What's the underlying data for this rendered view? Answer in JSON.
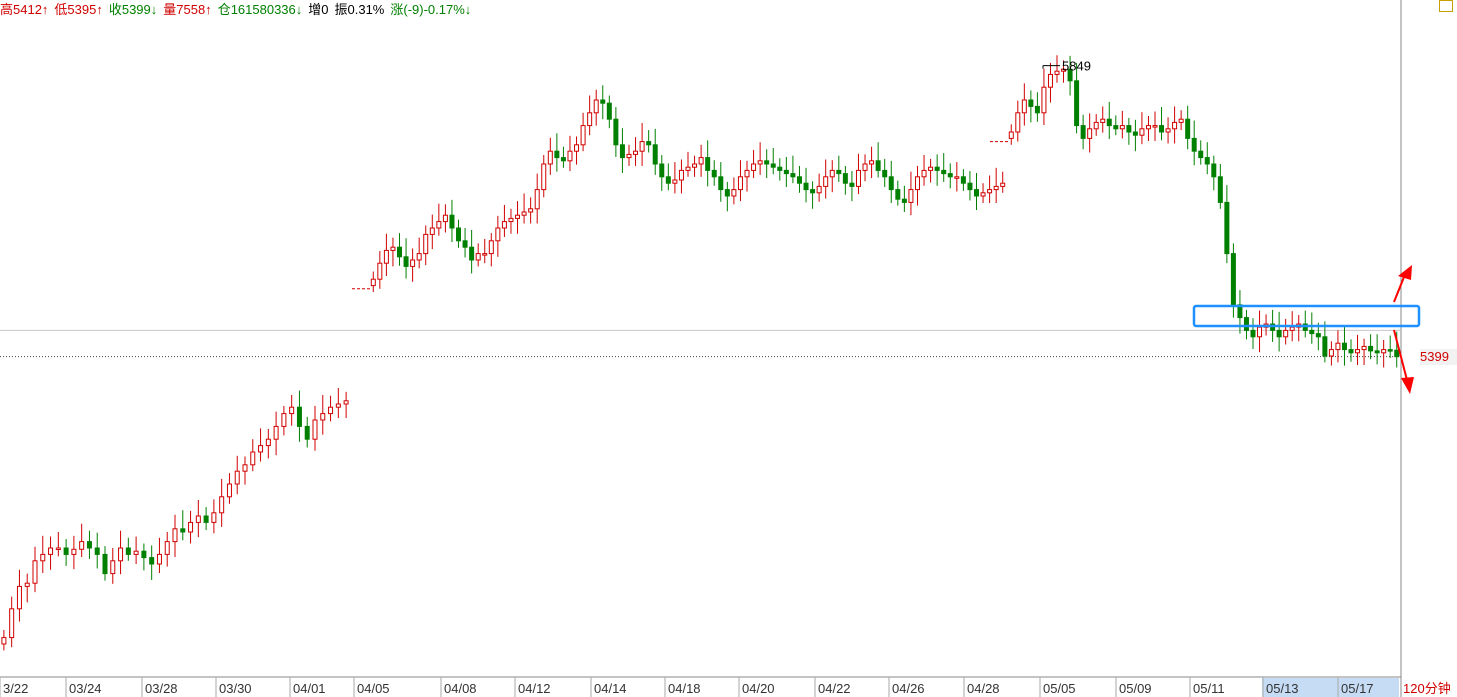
{
  "info_bar": {
    "high": "高5412↑",
    "low": "低5395↑",
    "close": "收5399↓",
    "volume": "量7558↑",
    "open_interest": "仓161580336↓",
    "increase": "增0",
    "amplitude": "振0.31%",
    "change": "涨(-9)-0.17%↓"
  },
  "period_label": "120分钟",
  "price_tag": "5399",
  "peak_label": "5849",
  "colors": {
    "up": "#d00000",
    "down": "#008000",
    "highlight": "#1e90ff",
    "arrow": "#ff0000",
    "selection": "#c6dcf5"
  },
  "chart_data": {
    "type": "candlestick",
    "title": "",
    "x_labels": [
      "3/22",
      "03/24",
      "03/28",
      "03/30",
      "04/01",
      "04/05",
      "04/08",
      "04/12",
      "04/14",
      "04/18",
      "04/20",
      "04/22",
      "04/26",
      "04/28",
      "05/05",
      "05/09",
      "05/11",
      "05/13",
      "05/17"
    ],
    "selected_x_labels": [
      "05/13",
      "05/17"
    ],
    "last_close": 5399,
    "period_high": 5849,
    "reference_level": 5440,
    "y_range": [
      4900,
      5900
    ],
    "candle_segments": [
      [
        4960,
        5005,
        5040,
        5045,
        5080,
        5090,
        5100,
        5100,
        5090,
        5098,
        5110,
        5100,
        5090,
        5060,
        5080,
        5100,
        5090,
        5095,
        5085,
        5075,
        5090,
        5110,
        5130,
        5125,
        5140,
        5150,
        5140,
        5155,
        5180,
        5200,
        5220,
        5230,
        5250,
        5260,
        5270,
        5290,
        5310,
        5320,
        5290,
        5270,
        5300,
        5310,
        5320,
        5325,
        5330
      ],
      [
        5520,
        5545,
        5565,
        5570,
        5555,
        5540,
        5550,
        5560,
        5590,
        5600,
        5610,
        5620,
        5600,
        5580,
        5570,
        5550,
        5560,
        5560,
        5580,
        5600,
        5610,
        5615,
        5620,
        5625,
        5630,
        5660,
        5700,
        5720,
        5710,
        5705,
        5720,
        5730,
        5760,
        5780,
        5800,
        5795,
        5770,
        5730,
        5710,
        5715,
        5720,
        5735,
        5730,
        5700,
        5680,
        5670,
        5675,
        5690,
        5695,
        5700,
        5710,
        5690,
        5680,
        5660,
        5650,
        5660,
        5680,
        5690,
        5700,
        5705,
        5700,
        5695,
        5690,
        5685,
        5680,
        5670,
        5660,
        5655,
        5665,
        5680,
        5690,
        5685,
        5670,
        5665,
        5690,
        5700,
        5705,
        5690,
        5680,
        5660,
        5645,
        5640,
        5660,
        5680,
        5690,
        5695,
        5690,
        5685,
        5680,
        5680,
        5670,
        5660,
        5650,
        5655,
        5660,
        5665,
        5670
      ],
      [
        5750,
        5780,
        5800,
        5790,
        5780,
        5820,
        5840,
        5845,
        5848,
        5830,
        5760,
        5740,
        5755,
        5765,
        5770,
        5760,
        5755,
        5760,
        5750,
        5745,
        5755,
        5760,
        5760,
        5750,
        5755,
        5765,
        5770,
        5740,
        5720,
        5710,
        5700,
        5680,
        5640,
        5560,
        5480,
        5460,
        5440,
        5430,
        5445,
        5450,
        5440,
        5430,
        5440,
        5445,
        5450,
        5440,
        5435,
        5430,
        5400,
        5410,
        5420,
        5410,
        5405,
        5410,
        5415,
        5408,
        5405,
        5410,
        5409,
        5399
      ]
    ]
  }
}
